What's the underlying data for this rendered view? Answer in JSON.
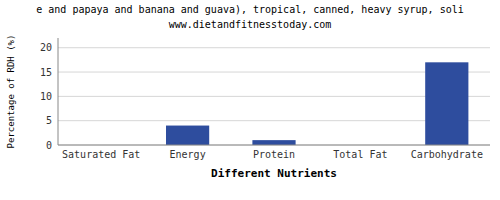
{
  "chart_data": {
    "type": "bar",
    "title": "e and papaya and banana and guava), tropical, canned, heavy syrup, soli",
    "subtitle": "www.dietandfitnesstoday.com",
    "categories": [
      "Saturated Fat",
      "Energy",
      "Protein",
      "Total Fat",
      "Carbohydrate"
    ],
    "values": [
      0.0,
      4.0,
      1.0,
      0.0,
      17.0
    ],
    "color": "#2e4d9e",
    "xlabel": "Different Nutrients",
    "ylabel": "Percentage of RDH (%)",
    "ylim": [
      0,
      22
    ],
    "yticks": [
      0,
      5,
      10,
      15,
      20
    ],
    "grid": true
  }
}
